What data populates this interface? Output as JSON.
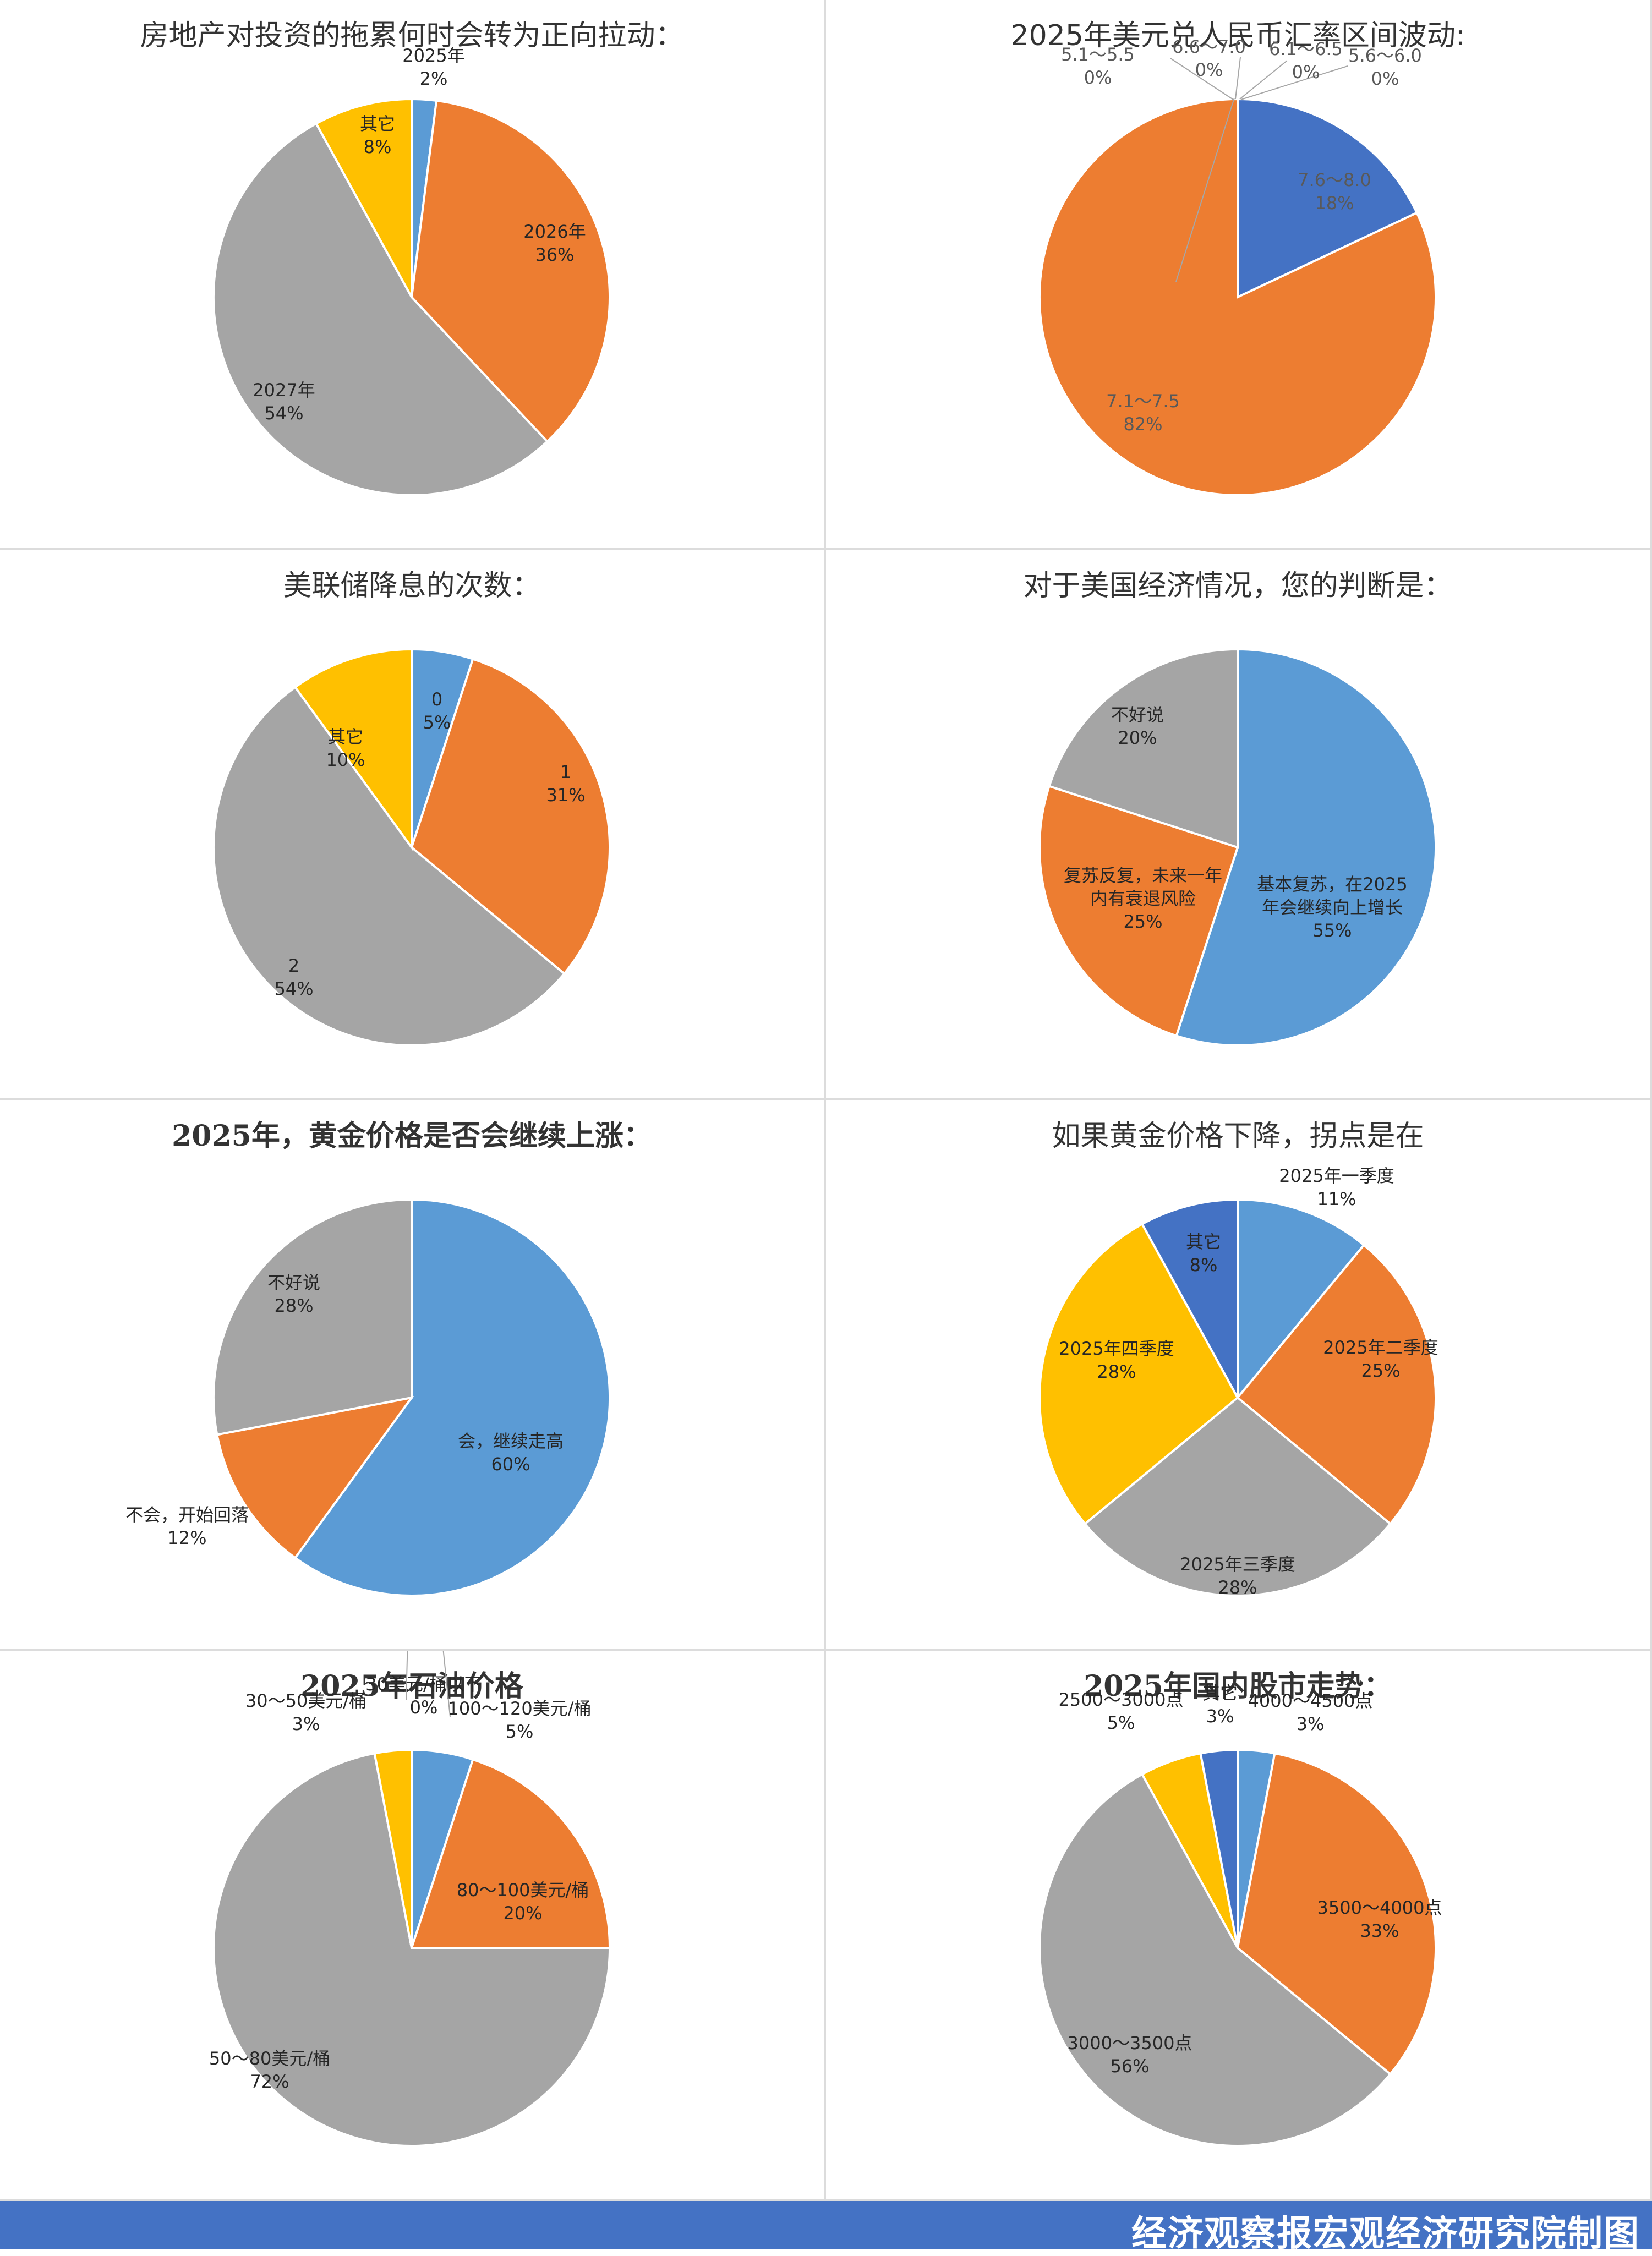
{
  "footer": {
    "credit": "经济观察报宏观经济研究院制图"
  },
  "palette": {
    "blue": "#5b9bd5",
    "dark_blue": "#4472c4",
    "orange": "#ed7d31",
    "gray": "#a5a5a5",
    "gold": "#ffc000"
  },
  "charts": [
    {
      "title": "房地产对投资的拖累何时会转为正向拉动：",
      "chart_data": {
        "type": "pie",
        "title": "房地产对投资的拖累何时会转为正向拉动：",
        "slices": [
          {
            "label": "2025年",
            "value": 2,
            "display": "2%",
            "color": "#5b9bd5"
          },
          {
            "label": "2026年",
            "value": 36,
            "display": "36%",
            "color": "#ed7d31"
          },
          {
            "label": "2027年",
            "value": 54,
            "display": "54%",
            "color": "#a5a5a5"
          },
          {
            "label": "其它",
            "value": 8,
            "display": "8%",
            "color": "#ffc000"
          }
        ]
      }
    },
    {
      "title": "2025年美元兑人民币汇率区间波动:",
      "chart_data": {
        "type": "pie",
        "title": "2025年美元兑人民币汇率区间波动:",
        "slices": [
          {
            "label": "7.6～8.0",
            "value": 18,
            "display": "18%",
            "color": "#4472c4"
          },
          {
            "label": "7.1～7.5",
            "value": 82,
            "display": "82%",
            "color": "#ed7d31"
          },
          {
            "label": "6.6～7.0",
            "value": 0,
            "display": "0%",
            "color": "#a5a5a5"
          },
          {
            "label": "6.1～6.5",
            "value": 0,
            "display": "0%",
            "color": "#ffc000"
          },
          {
            "label": "5.6～6.0",
            "value": 0,
            "display": "0%",
            "color": "#5b9bd5"
          },
          {
            "label": "5.1～5.5",
            "value": 0,
            "display": "0%",
            "color": "#70ad47"
          }
        ]
      }
    },
    {
      "title": "美联储降息的次数：",
      "chart_data": {
        "type": "pie",
        "title": "美联储降息的次数：",
        "slices": [
          {
            "label": "0",
            "value": 5,
            "display": "5%",
            "color": "#5b9bd5"
          },
          {
            "label": "1",
            "value": 31,
            "display": "31%",
            "color": "#ed7d31"
          },
          {
            "label": "2",
            "value": 54,
            "display": "54%",
            "color": "#a5a5a5"
          },
          {
            "label": "其它",
            "value": 10,
            "display": "10%",
            "color": "#ffc000"
          }
        ]
      }
    },
    {
      "title": "对于美国经济情况，您的判断是：",
      "chart_data": {
        "type": "pie",
        "title": "对于美国经济情况，您的判断是：",
        "slices": [
          {
            "label": "基本复苏，在2025年会继续向上增长",
            "value": 55,
            "display": "55%",
            "color": "#5b9bd5"
          },
          {
            "label": "复苏反复，未来一年内有衰退风险",
            "value": 25,
            "display": "25%",
            "color": "#ed7d31"
          },
          {
            "label": "不好说",
            "value": 20,
            "display": "20%",
            "color": "#a5a5a5"
          }
        ]
      }
    },
    {
      "title": "2025年，黄金价格是否会继续上涨：",
      "chart_data": {
        "type": "pie",
        "title": "2025年，黄金价格是否会继续上涨：",
        "slices": [
          {
            "label": "会，继续走高",
            "value": 60,
            "display": "60%",
            "color": "#5b9bd5"
          },
          {
            "label": "不会，开始回落",
            "value": 12,
            "display": "12%",
            "color": "#ed7d31"
          },
          {
            "label": "不好说",
            "value": 28,
            "display": "28%",
            "color": "#a5a5a5"
          }
        ]
      }
    },
    {
      "title": "如果黄金价格下降，拐点是在",
      "chart_data": {
        "type": "pie",
        "title": "如果黄金价格下降，拐点是在",
        "slices": [
          {
            "label": "2025年一季度",
            "value": 11,
            "display": "11%",
            "color": "#5b9bd5"
          },
          {
            "label": "2025年二季度",
            "value": 25,
            "display": "25%",
            "color": "#ed7d31"
          },
          {
            "label": "2025年三季度",
            "value": 28,
            "display": "28%",
            "color": "#a5a5a5"
          },
          {
            "label": "2025年四季度",
            "value": 28,
            "display": "28%",
            "color": "#ffc000"
          },
          {
            "label": "其它",
            "value": 8,
            "display": "8%",
            "color": "#4472c4"
          }
        ]
      }
    },
    {
      "title": "2025年石油价格",
      "chart_data": {
        "type": "pie",
        "title": "2025年石油价格",
        "slices": [
          {
            "label": "100～120美元/桶",
            "value": 5,
            "display": "5%",
            "color": "#5b9bd5"
          },
          {
            "label": "80～100美元/桶",
            "value": 20,
            "display": "20%",
            "color": "#ed7d31"
          },
          {
            "label": "50～80美元/桶",
            "value": 72,
            "display": "72%",
            "color": "#a5a5a5"
          },
          {
            "label": "30～50美元/桶",
            "value": 3,
            "display": "3%",
            "color": "#ffc000"
          },
          {
            "label": "30美元/桶以下",
            "value": 0,
            "display": "0%",
            "color": "#4472c4"
          }
        ]
      }
    },
    {
      "title": "2025年国内股市走势：",
      "chart_data": {
        "type": "pie",
        "title": "2025年国内股市走势：",
        "slices": [
          {
            "label": "4000～4500点",
            "value": 3,
            "display": "3%",
            "color": "#5b9bd5"
          },
          {
            "label": "3500～4000点",
            "value": 33,
            "display": "33%",
            "color": "#ed7d31"
          },
          {
            "label": "3000～3500点",
            "value": 56,
            "display": "56%",
            "color": "#a5a5a5"
          },
          {
            "label": "2500～3000点",
            "value": 5,
            "display": "5%",
            "color": "#ffc000"
          },
          {
            "label": "其它",
            "value": 3,
            "display": "3%",
            "color": "#4472c4"
          }
        ]
      }
    }
  ]
}
